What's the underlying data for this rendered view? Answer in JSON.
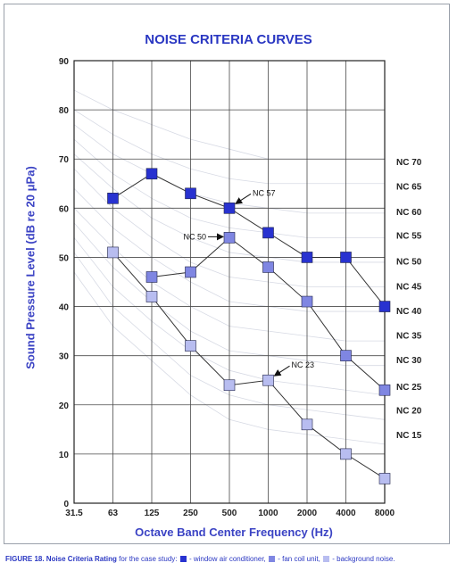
{
  "chart_data": {
    "type": "line",
    "title": "NOISE CRITERIA CURVES",
    "xlabel": "Octave Band Center Frequency (Hz)",
    "ylabel": "Sound Pressure Level (dB re 20 μPa)",
    "categories": [
      "31.5",
      "63",
      "125",
      "250",
      "500",
      "1000",
      "2000",
      "4000",
      "8000"
    ],
    "y_ticks": [
      "0",
      "10",
      "20",
      "30",
      "40",
      "50",
      "60",
      "70",
      "80",
      "90"
    ],
    "ylim": [
      0,
      90
    ],
    "grid": true,
    "series": [
      {
        "key": "window",
        "color": "#2832d0",
        "values": [
          null,
          62,
          67,
          63,
          60,
          55,
          50,
          50,
          40
        ]
      },
      {
        "key": "fancoil",
        "color": "#7f86e2",
        "values": [
          null,
          null,
          46,
          47,
          54,
          48,
          41,
          30,
          23
        ]
      },
      {
        "key": "background",
        "color": "#b8bdf0",
        "values": [
          null,
          51,
          42,
          32,
          24,
          25,
          16,
          10,
          5
        ]
      }
    ],
    "nc_labels": [
      {
        "label": "NC 70",
        "y": 69.5
      },
      {
        "label": "NC 65",
        "y": 64.5
      },
      {
        "label": "NC 60",
        "y": 59.3
      },
      {
        "label": "NC 55",
        "y": 54.5
      },
      {
        "label": "NC 50",
        "y": 49.3
      },
      {
        "label": "NC 45",
        "y": 44.2
      },
      {
        "label": "NC 40",
        "y": 39.2
      },
      {
        "label": "NC 35",
        "y": 34.2
      },
      {
        "label": "NC 30",
        "y": 29.2
      },
      {
        "label": "NC 25",
        "y": 23.8
      },
      {
        "label": "NC 20",
        "y": 19.0
      },
      {
        "label": "NC 15",
        "y": 14.0
      }
    ],
    "nc_curves": [
      [
        84,
        80,
        77,
        74,
        72,
        70,
        70,
        70,
        70
      ],
      [
        80,
        75,
        71,
        68,
        66,
        65,
        65,
        65,
        65
      ],
      [
        77,
        71,
        67,
        63,
        61,
        60,
        59,
        59,
        59
      ],
      [
        74,
        67,
        62,
        58,
        56,
        55,
        54,
        54,
        54
      ],
      [
        71,
        64,
        58,
        54,
        51,
        50,
        49,
        49,
        49
      ],
      [
        68,
        60,
        54,
        49,
        46,
        45,
        44,
        44,
        44
      ],
      [
        64,
        56,
        50,
        45,
        41,
        40,
        39,
        39,
        39
      ],
      [
        60,
        52,
        45,
        40,
        36,
        35,
        34,
        33,
        33
      ],
      [
        57,
        48,
        41,
        35,
        31,
        30,
        29,
        28,
        28
      ],
      [
        54,
        44,
        37,
        31,
        27,
        25,
        24,
        23,
        22
      ],
      [
        51,
        40,
        33,
        26,
        22,
        20,
        19,
        18,
        17
      ],
      [
        47,
        36,
        29,
        22,
        17,
        15,
        14,
        13,
        12
      ]
    ],
    "annotations": [
      {
        "text": "NC 57",
        "x": 4,
        "y": 60,
        "dir": "right"
      },
      {
        "text": "NC 50",
        "x": 4,
        "y": 54,
        "dir": "left"
      },
      {
        "text": "NC 23",
        "x": 5,
        "y": 25,
        "dir": "right"
      }
    ]
  },
  "caption": {
    "bold": "FIGURE 18. Noise Criteria Rating",
    "lead": " for the case study: ",
    "window": " - window air conditioner, ",
    "fancoil": " - fan coil unit, ",
    "background": " - background noise."
  }
}
